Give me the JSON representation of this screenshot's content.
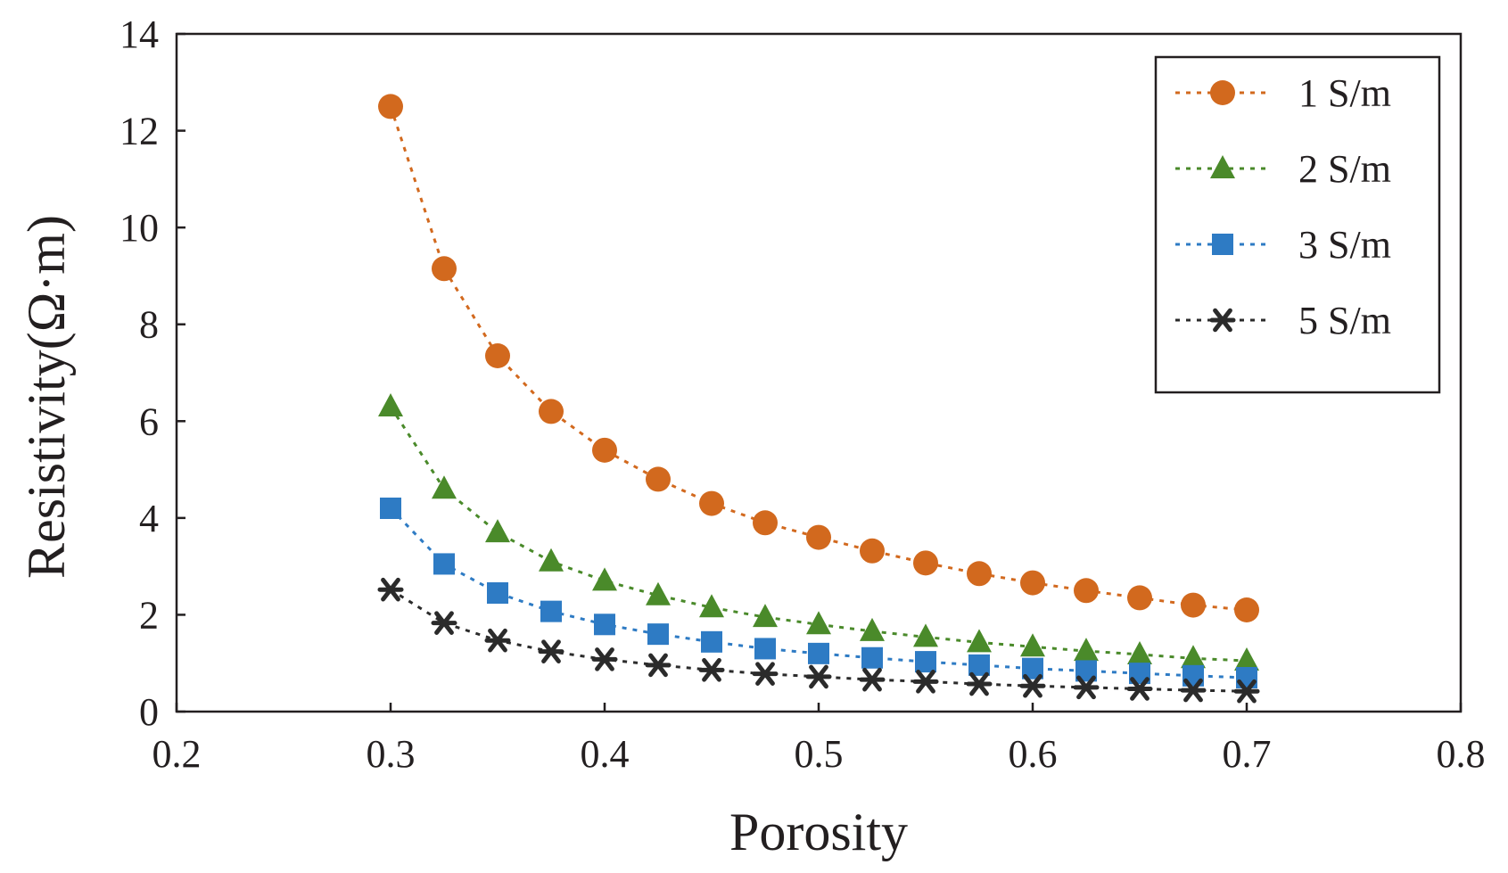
{
  "chart_data": {
    "type": "line",
    "title": "",
    "xlabel": "Porosity",
    "ylabel": "Resistivity(Ω·m)",
    "xlim": [
      0.2,
      0.8
    ],
    "ylim": [
      0,
      14
    ],
    "xticks": [
      0.2,
      0.3,
      0.4,
      0.5,
      0.6,
      0.7,
      0.8
    ],
    "yticks": [
      0,
      2,
      4,
      6,
      8,
      10,
      12,
      14
    ],
    "xtick_labels": [
      "0.2",
      "0.3",
      "0.4",
      "0.5",
      "0.6",
      "0.7",
      "0.8"
    ],
    "ytick_labels": [
      "0",
      "2",
      "4",
      "6",
      "8",
      "10",
      "12",
      "14"
    ],
    "grid": false,
    "legend_position": "top-right",
    "x": [
      0.3,
      0.325,
      0.35,
      0.375,
      0.4,
      0.425,
      0.45,
      0.475,
      0.5,
      0.525,
      0.55,
      0.575,
      0.6,
      0.625,
      0.65,
      0.675,
      0.7
    ],
    "series": [
      {
        "name": "1 S/m",
        "marker": "circle",
        "color": "#d2691e",
        "values": [
          12.5,
          9.15,
          7.35,
          6.2,
          5.4,
          4.8,
          4.3,
          3.9,
          3.6,
          3.32,
          3.07,
          2.85,
          2.66,
          2.5,
          2.35,
          2.2,
          2.1
        ]
      },
      {
        "name": "2 S/m",
        "marker": "triangle",
        "color": "#4a8a2a",
        "values": [
          6.3,
          4.6,
          3.7,
          3.1,
          2.7,
          2.4,
          2.15,
          1.95,
          1.8,
          1.66,
          1.54,
          1.43,
          1.34,
          1.25,
          1.18,
          1.1,
          1.05
        ]
      },
      {
        "name": "3 S/m",
        "marker": "square",
        "color": "#2e7bc4",
        "values": [
          4.2,
          3.05,
          2.45,
          2.07,
          1.8,
          1.6,
          1.44,
          1.3,
          1.2,
          1.11,
          1.03,
          0.96,
          0.89,
          0.84,
          0.79,
          0.74,
          0.7
        ]
      },
      {
        "name": "5 S/m",
        "marker": "star",
        "color": "#2b2b2b",
        "values": [
          2.52,
          1.83,
          1.47,
          1.24,
          1.08,
          0.96,
          0.86,
          0.78,
          0.72,
          0.66,
          0.62,
          0.57,
          0.53,
          0.5,
          0.47,
          0.44,
          0.42
        ]
      }
    ]
  }
}
